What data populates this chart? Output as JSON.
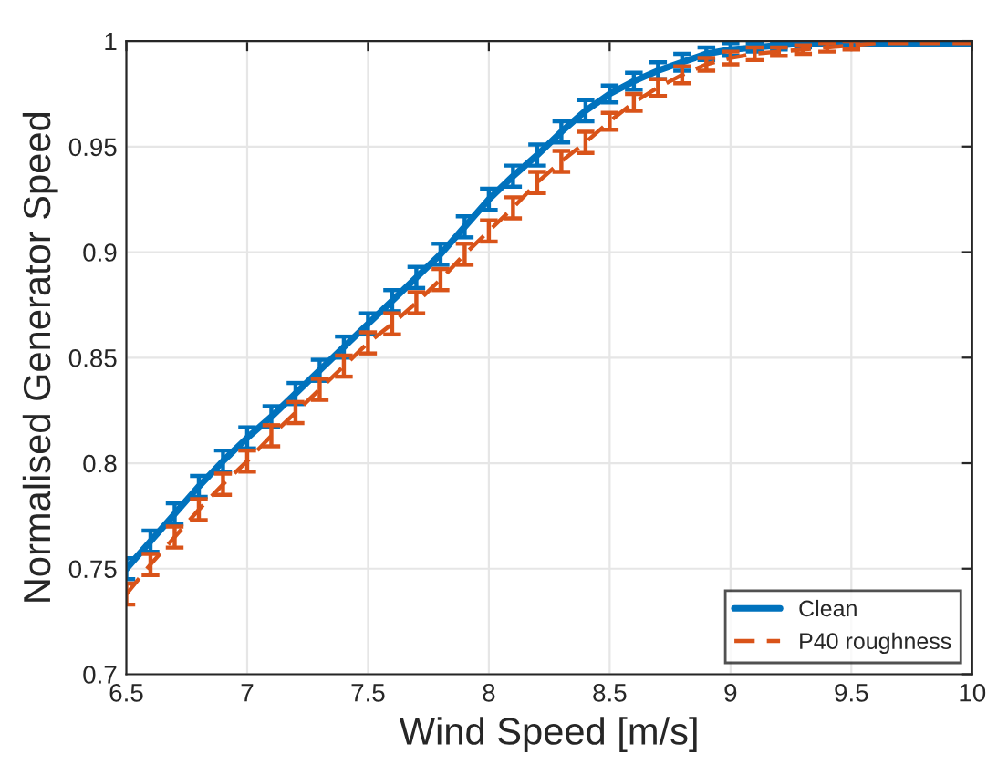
{
  "chart_data": {
    "type": "line",
    "xlabel": "Wind Speed [m/s]",
    "ylabel": "Normalised Generator Speed",
    "x": [
      6.5,
      6.6,
      6.7,
      6.8,
      6.9,
      7.0,
      7.1,
      7.2,
      7.3,
      7.4,
      7.5,
      7.6,
      7.7,
      7.8,
      7.9,
      8.0,
      8.1,
      8.2,
      8.3,
      8.4,
      8.5,
      8.6,
      8.7,
      8.8,
      8.9,
      9.0,
      9.1,
      9.2,
      9.3,
      9.4,
      9.5,
      9.6,
      9.7,
      9.8,
      9.9,
      10.0
    ],
    "series": [
      {
        "name": "Clean",
        "color": "#0072bd",
        "line_style": "solid",
        "values": [
          0.75,
          0.763,
          0.776,
          0.789,
          0.801,
          0.812,
          0.822,
          0.833,
          0.844,
          0.855,
          0.866,
          0.877,
          0.888,
          0.899,
          0.912,
          0.925,
          0.936,
          0.946,
          0.957,
          0.967,
          0.975,
          0.981,
          0.986,
          0.99,
          0.994,
          0.996,
          0.997,
          0.998,
          0.999,
          0.999,
          0.999,
          0.999,
          0.999,
          0.999,
          0.999,
          0.999
        ],
        "errors": [
          0.005,
          0.005,
          0.005,
          0.005,
          0.005,
          0.005,
          0.005,
          0.005,
          0.005,
          0.005,
          0.005,
          0.005,
          0.005,
          0.005,
          0.005,
          0.005,
          0.005,
          0.005,
          0.005,
          0.005,
          0.004,
          0.004,
          0.004,
          0.004,
          0.003,
          0.003,
          0.002,
          0.002,
          0.002,
          null,
          null,
          null,
          null,
          null,
          null,
          null
        ]
      },
      {
        "name": "P40 roughness",
        "color": "#d95319",
        "line_style": "dashed",
        "values": [
          0.738,
          0.752,
          0.765,
          0.778,
          0.79,
          0.801,
          0.813,
          0.824,
          0.835,
          0.846,
          0.857,
          0.866,
          0.876,
          0.887,
          0.899,
          0.91,
          0.921,
          0.933,
          0.943,
          0.952,
          0.962,
          0.971,
          0.978,
          0.984,
          0.989,
          0.992,
          0.994,
          0.995,
          0.996,
          0.997,
          0.998,
          0.999,
          0.999,
          0.999,
          0.999,
          0.999
        ],
        "errors": [
          0.005,
          0.005,
          0.005,
          0.005,
          0.005,
          0.005,
          0.005,
          0.005,
          0.005,
          0.005,
          0.005,
          0.005,
          0.005,
          0.005,
          0.005,
          0.005,
          0.005,
          0.005,
          0.005,
          0.005,
          0.004,
          0.004,
          0.004,
          0.004,
          0.003,
          0.003,
          0.003,
          0.002,
          0.002,
          0.002,
          0.002,
          null,
          null,
          null,
          null,
          null
        ]
      }
    ],
    "xlim": [
      6.5,
      10
    ],
    "xticks": [
      6.5,
      7,
      7.5,
      8,
      8.5,
      9,
      9.5,
      10
    ],
    "ylim": [
      0.7,
      1
    ],
    "yticks": [
      0.7,
      0.75,
      0.8,
      0.85,
      0.9,
      0.95,
      1
    ],
    "grid": true,
    "legend": "bottom right",
    "marker": "none"
  }
}
